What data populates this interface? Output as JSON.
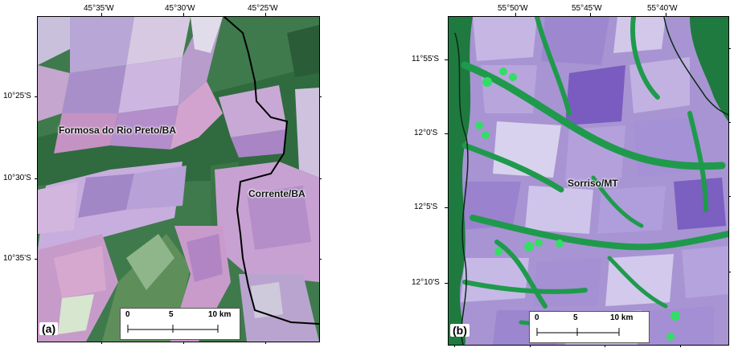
{
  "panel_a": {
    "label": "(a)",
    "lon_ticks": [
      "45°35'W",
      "45°30'W",
      "45°25'W"
    ],
    "lat_ticks": [
      "10°25'S",
      "10°30'S",
      "10°35'S"
    ],
    "places": [
      "Formosa do Rio Preto/BA",
      "Corrente/BA"
    ],
    "scale": {
      "zero": "0",
      "mid": "5",
      "end": "10 km"
    }
  },
  "panel_b": {
    "label": "(b)",
    "lon_ticks": [
      "55°50'W",
      "55°45'W",
      "55°40'W"
    ],
    "lat_ticks": [
      "11°55'S",
      "12°0'S",
      "12°5'S",
      "12°10'S"
    ],
    "places": [
      "Sorriso/MT"
    ],
    "scale": {
      "zero": "0",
      "mid": "5",
      "end": "10 km"
    }
  },
  "colors": {
    "forest": "#2f6b3e",
    "vegetation": "#1fae55",
    "crop_purple": "#a88fcf",
    "crop_pink": "#c58bb8",
    "boundary": "#000000"
  }
}
